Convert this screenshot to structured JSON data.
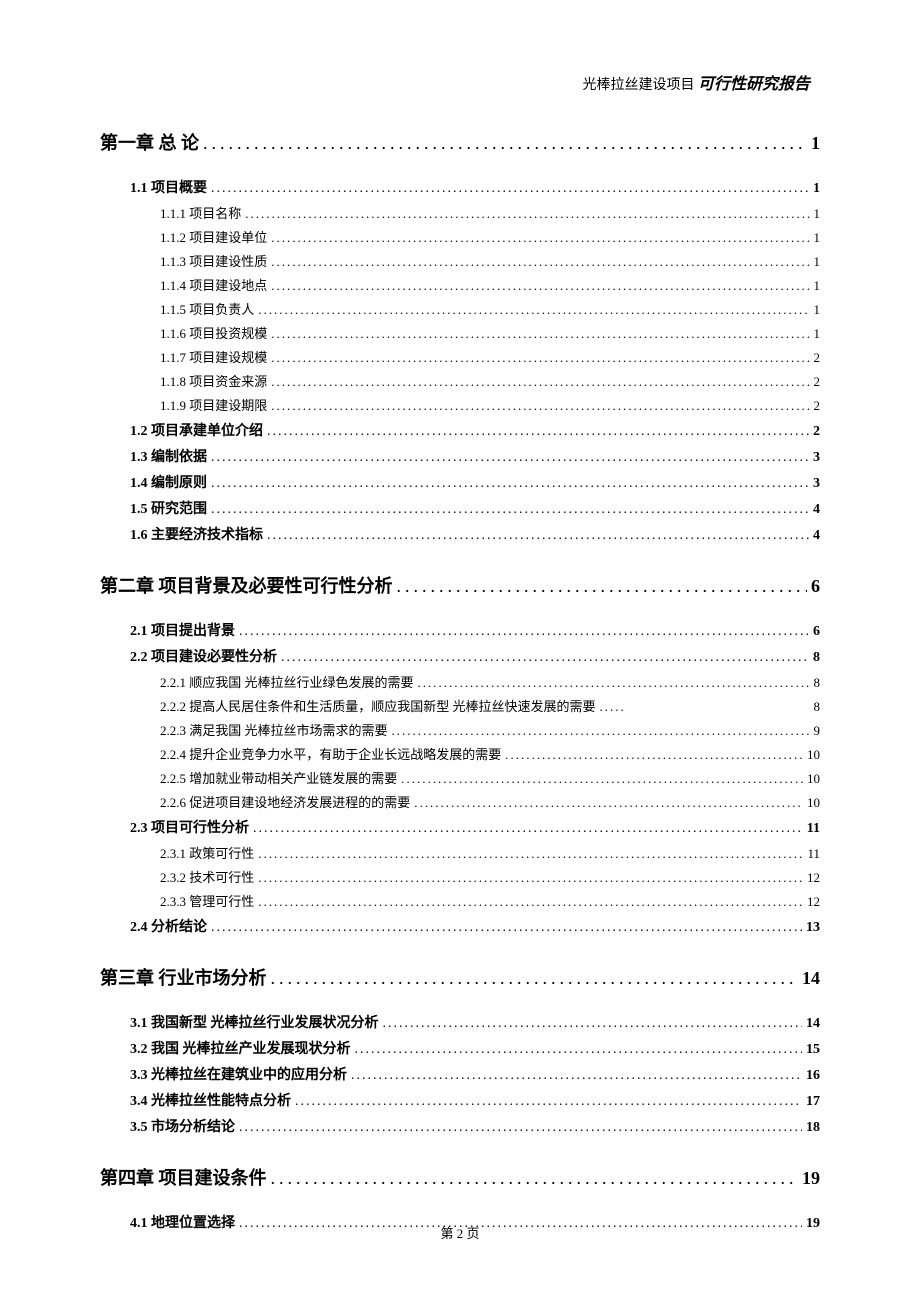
{
  "header": {
    "project_name": "光棒拉丝建设项目",
    "report_type": "可行性研究报告"
  },
  "toc": {
    "chapters": [
      {
        "title": "第一章 总 论",
        "page": "1",
        "sections": [
          {
            "title": "1.1 项目概要",
            "page": "1",
            "subsections": [
              {
                "title": "1.1.1 项目名称",
                "page": "1"
              },
              {
                "title": "1.1.2 项目建设单位",
                "page": "1"
              },
              {
                "title": "1.1.3 项目建设性质",
                "page": "1"
              },
              {
                "title": "1.1.4 项目建设地点",
                "page": "1"
              },
              {
                "title": "1.1.5 项目负责人",
                "page": "1"
              },
              {
                "title": "1.1.6 项目投资规模",
                "page": "1"
              },
              {
                "title": "1.1.7 项目建设规模",
                "page": "2"
              },
              {
                "title": "1.1.8 项目资金来源",
                "page": "2"
              },
              {
                "title": "1.1.9 项目建设期限",
                "page": "2"
              }
            ]
          },
          {
            "title": "1.2 项目承建单位介绍",
            "page": "2",
            "subsections": []
          },
          {
            "title": "1.3 编制依据",
            "page": "3",
            "subsections": []
          },
          {
            "title": "1.4 编制原则",
            "page": "3",
            "subsections": []
          },
          {
            "title": "1.5 研究范围",
            "page": "4",
            "subsections": []
          },
          {
            "title": "1.6 主要经济技术指标",
            "page": "4",
            "subsections": []
          }
        ]
      },
      {
        "title": "第二章 项目背景及必要性可行性分析",
        "page": "6",
        "sections": [
          {
            "title": "2.1 项目提出背景",
            "page": "6",
            "subsections": []
          },
          {
            "title": "2.2 项目建设必要性分析",
            "page": "8",
            "subsections": [
              {
                "title": "2.2.1 顺应我国 光棒拉丝行业绿色发展的需要",
                "page": "8"
              },
              {
                "title": "2.2.2 提高人民居住条件和生活质量，顺应我国新型 光棒拉丝快速发展的需要",
                "page": "8",
                "wrap": true
              },
              {
                "title": "2.2.3 满足我国 光棒拉丝市场需求的需要",
                "page": "9"
              },
              {
                "title": "2.2.4 提升企业竞争力水平，有助于企业长远战略发展的需要",
                "page": "10"
              },
              {
                "title": "2.2.5 增加就业带动相关产业链发展的需要",
                "page": "10"
              },
              {
                "title": "2.2.6 促进项目建设地经济发展进程的的需要",
                "page": "10"
              }
            ]
          },
          {
            "title": "2.3 项目可行性分析",
            "page": "11",
            "subsections": [
              {
                "title": "2.3.1 政策可行性",
                "page": "11"
              },
              {
                "title": "2.3.2 技术可行性",
                "page": "12"
              },
              {
                "title": "2.3.3 管理可行性",
                "page": "12"
              }
            ]
          },
          {
            "title": "2.4 分析结论",
            "page": "13",
            "subsections": []
          }
        ]
      },
      {
        "title": "第三章 行业市场分析",
        "page": "14",
        "sections": [
          {
            "title": "3.1 我国新型 光棒拉丝行业发展状况分析",
            "page": "14",
            "subsections": []
          },
          {
            "title": "3.2 我国 光棒拉丝产业发展现状分析",
            "page": "15",
            "subsections": []
          },
          {
            "title": "3.3 光棒拉丝在建筑业中的应用分析",
            "page": "16",
            "subsections": []
          },
          {
            "title": "3.4 光棒拉丝性能特点分析",
            "page": "17",
            "subsections": []
          },
          {
            "title": "3.5 市场分析结论",
            "page": "18",
            "subsections": []
          }
        ]
      },
      {
        "title": "第四章 项目建设条件",
        "page": "19",
        "sections": [
          {
            "title": "4.1 地理位置选择",
            "page": "19",
            "subsections": []
          }
        ]
      }
    ]
  },
  "footer": {
    "page_label": "第 2 页"
  },
  "style": {
    "text_color": "#000000",
    "background_color": "#ffffff",
    "chapter_fontsize": 18,
    "section_fontsize": 14,
    "subsection_fontsize": 13,
    "header_fontsize": 14,
    "footer_fontsize": 13
  }
}
